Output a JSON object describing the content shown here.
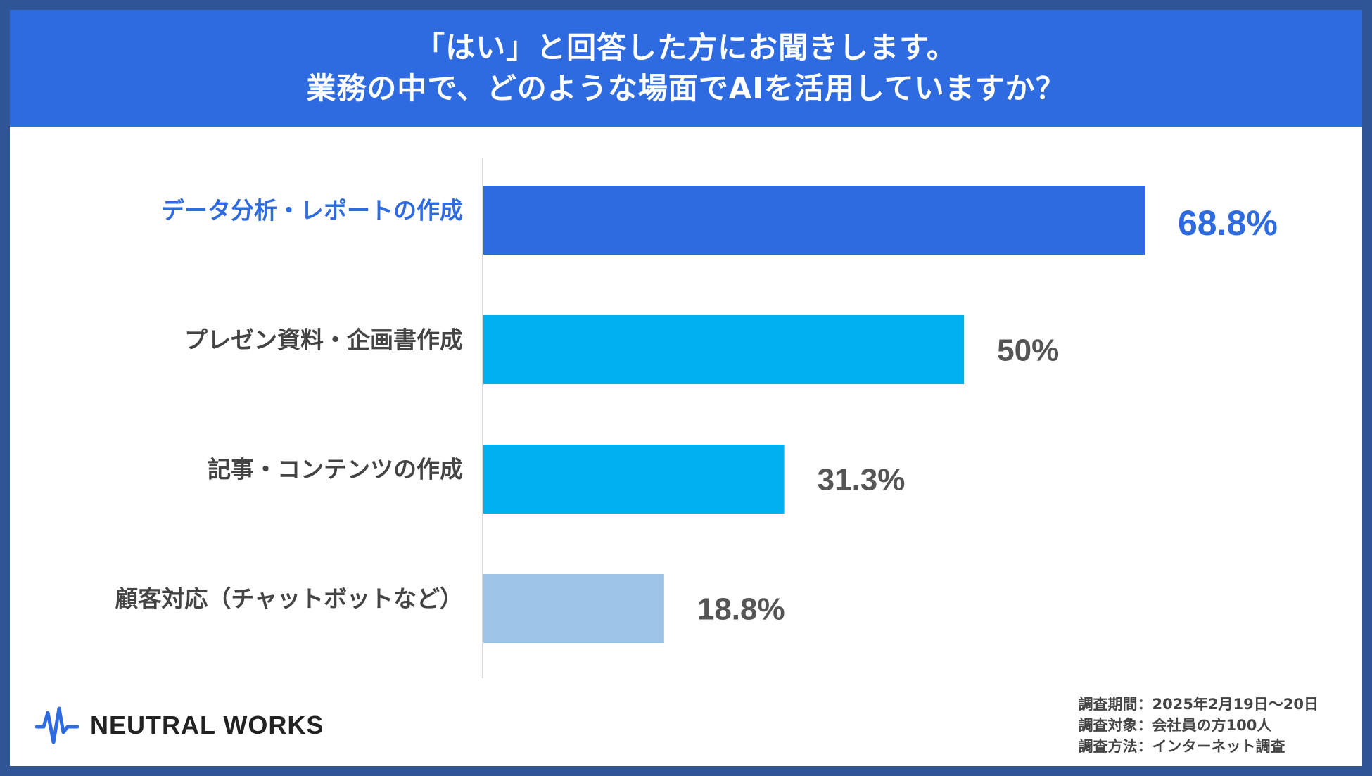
{
  "header": {
    "line1": "「はい」と回答した方にお聞きします。",
    "line2": "業務の中で、どのような場面でAIを活用していますか？"
  },
  "chart_data": {
    "type": "bar",
    "orientation": "horizontal",
    "categories": [
      "データ分析・レポートの作成",
      "プレゼン資料・企画書作成",
      "記事・コンテンツの作成",
      "顧客対応（チャットボットなど）"
    ],
    "values": [
      68.8,
      50,
      31.3,
      18.8
    ],
    "value_labels": [
      "68.8%",
      "50%",
      "31.3%",
      "18.8%"
    ],
    "bar_colors": [
      "#2f6be0",
      "#00b0f0",
      "#00b0f0",
      "#9dc3e6"
    ],
    "label_colors": [
      "#2f6be0",
      "#444444",
      "#444444",
      "#444444"
    ],
    "value_label_colors": [
      "#2f6be0",
      "#555555",
      "#555555",
      "#555555"
    ],
    "xlim": [
      0,
      100
    ],
    "grid": false,
    "legend": "none"
  },
  "footer": {
    "survey_period": "調査期間：2025年2月19日〜20日",
    "survey_target": "調査対象：会社員の方100人",
    "survey_method": "調査方法：インターネット調査"
  },
  "logo": {
    "text": "NEUTRAL WORKS",
    "icon": "waveform-icon",
    "icon_color": "#2f6be0"
  }
}
